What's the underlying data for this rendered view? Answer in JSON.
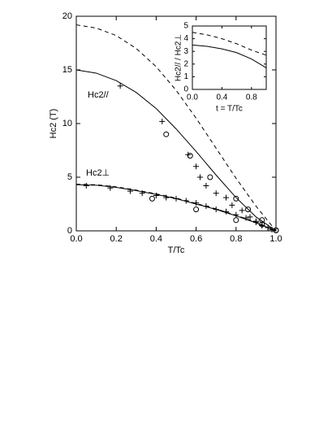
{
  "chart_data": [
    {
      "type": "scatter",
      "x_label": "T/Tc",
      "y_label": "Hc2 (T)",
      "xlim": [
        0,
        1
      ],
      "ylim": [
        0,
        20
      ],
      "xticks": [
        {
          "value": 0,
          "label": "0.0"
        },
        0.2,
        0.4,
        0.6,
        0.8,
        {
          "value": 1,
          "label": "1.0"
        }
      ],
      "yticks": [
        0,
        5,
        10,
        15,
        20
      ],
      "annotations": [
        "Hc2//",
        "Hc2⊥"
      ],
      "series": [
        {
          "style": "solid",
          "color": "#000",
          "x": [
            0,
            0.1,
            0.2,
            0.3,
            0.4,
            0.5,
            0.6,
            0.7,
            0.8,
            0.9,
            1
          ],
          "values": [
            15,
            14.7,
            14,
            12.9,
            11.4,
            9.5,
            7.4,
            5.2,
            3.1,
            1.3,
            0
          ]
        },
        {
          "style": "dashed",
          "color": "#000",
          "x": [
            0,
            0.1,
            0.2,
            0.3,
            0.4,
            0.5,
            0.6,
            0.7,
            0.8,
            0.9,
            1
          ],
          "values": [
            19.2,
            18.9,
            18.2,
            17,
            15.3,
            13.1,
            10.5,
            7.7,
            4.9,
            2.3,
            0
          ]
        },
        {
          "style": "solid",
          "color": "#000",
          "x": [
            0,
            0.1,
            0.2,
            0.3,
            0.4,
            0.5,
            0.6,
            0.7,
            0.8,
            0.9,
            1
          ],
          "values": [
            4.3,
            4.25,
            4.05,
            3.75,
            3.4,
            3,
            2.5,
            2,
            1.4,
            0.75,
            0
          ]
        },
        {
          "style": "dashed",
          "color": "#000",
          "x": [
            0,
            0.1,
            0.2,
            0.3,
            0.4,
            0.5,
            0.6,
            0.7,
            0.8,
            0.9,
            1
          ],
          "values": [
            4.35,
            4.3,
            4.1,
            3.8,
            3.45,
            3.05,
            2.55,
            2.05,
            1.45,
            0.8,
            0
          ]
        },
        {
          "style": "cross",
          "color": "#000",
          "x": [
            0.22,
            0.43,
            0.56,
            0.6,
            0.62,
            0.65,
            0.7,
            0.75,
            0.78,
            0.83,
            0.87,
            0.9,
            0.93,
            0.96,
            0.98
          ],
          "values": [
            13.5,
            10.2,
            7.1,
            6,
            5,
            4.2,
            3.5,
            3.1,
            2.4,
            1.9,
            1.3,
            0.9,
            0.5,
            0.3,
            0.1
          ]
        },
        {
          "style": "circle",
          "color": "#000",
          "x": [
            0.45,
            0.57,
            0.67,
            0.8,
            0.86,
            0.93,
            1
          ],
          "values": [
            9,
            7,
            5,
            3,
            2,
            1,
            0.05
          ]
        },
        {
          "style": "cross",
          "color": "#000",
          "x": [
            0.05,
            0.17,
            0.27,
            0.33,
            0.4,
            0.45,
            0.5,
            0.55,
            0.6,
            0.65,
            0.7,
            0.75,
            0.8,
            0.85,
            0.9,
            0.93,
            0.96
          ],
          "values": [
            4.2,
            4,
            3.7,
            3.5,
            3.3,
            3.1,
            3,
            2.8,
            2.6,
            2.3,
            2,
            1.8,
            1.5,
            1.2,
            0.8,
            0.5,
            0.3
          ]
        },
        {
          "style": "circle",
          "color": "#000",
          "x": [
            0.38,
            0.6,
            0.8,
            0.93,
            1
          ],
          "values": [
            3,
            2,
            1,
            0.6,
            0.05
          ]
        }
      ]
    },
    {
      "type": "line",
      "x_label": "t = T/Tc",
      "y_label": "Hc2// / Hc2⊥",
      "xlim": [
        0,
        1
      ],
      "ylim": [
        0,
        5
      ],
      "xticks": [
        {
          "value": 0,
          "label": "0.0"
        },
        0.4,
        0.8
      ],
      "yticks": [
        0,
        1,
        2,
        3,
        4,
        5
      ],
      "series": [
        {
          "style": "solid",
          "color": "#000",
          "x": [
            0,
            0.2,
            0.4,
            0.6,
            0.8,
            1
          ],
          "values": [
            3.5,
            3.4,
            3.2,
            2.9,
            2.4,
            1.7
          ]
        },
        {
          "style": "dashed",
          "color": "#000",
          "x": [
            0,
            0.2,
            0.4,
            0.6,
            0.8,
            1
          ],
          "values": [
            4.5,
            4.3,
            4,
            3.6,
            3.1,
            2.7
          ]
        }
      ]
    }
  ]
}
